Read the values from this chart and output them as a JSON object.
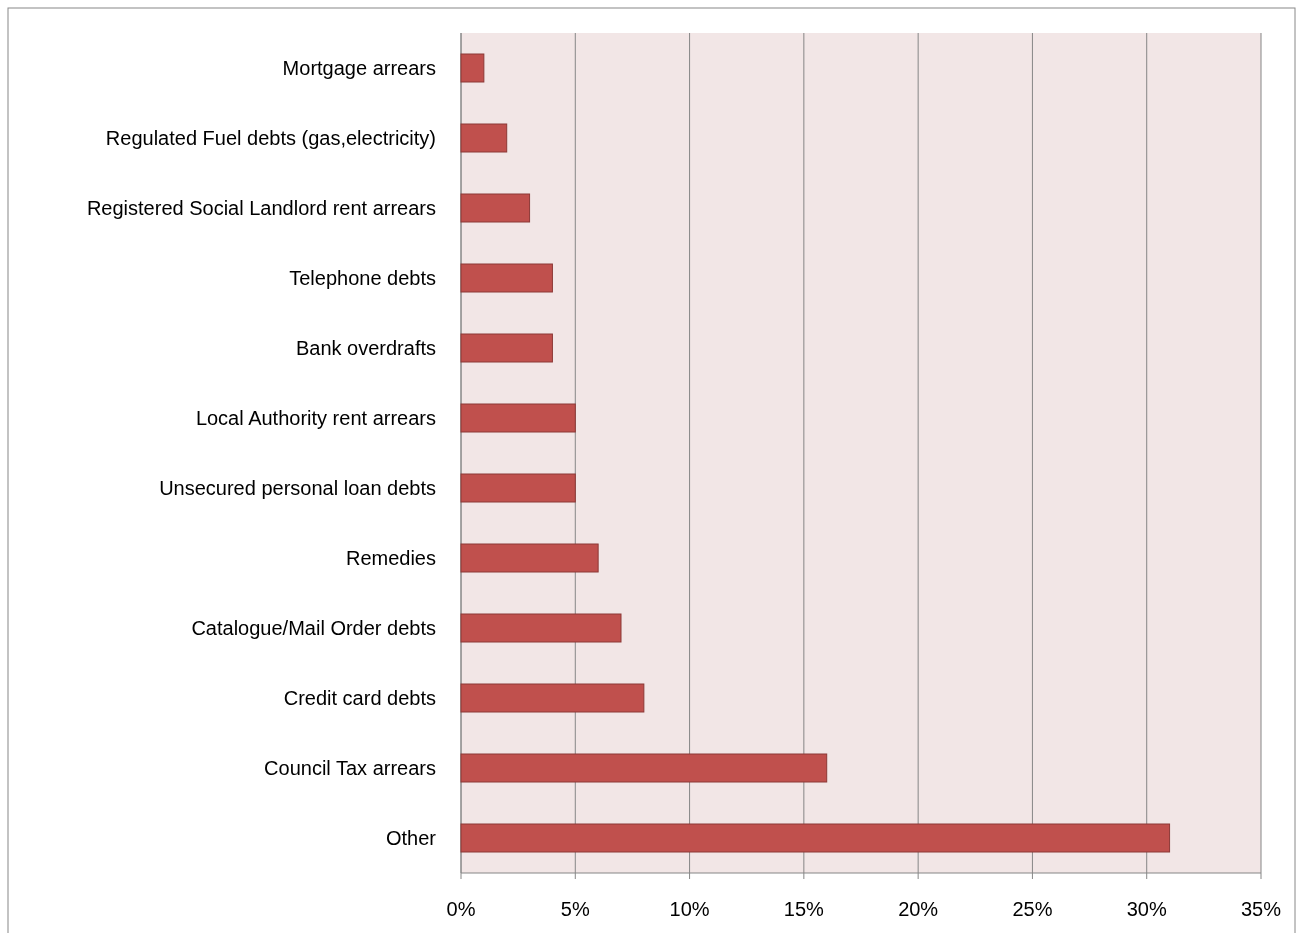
{
  "chart_data": {
    "type": "bar",
    "orientation": "horizontal",
    "categories": [
      "Mortgage arrears",
      "Regulated Fuel debts (gas,electricity)",
      "Registered Social Landlord rent arrears",
      "Telephone debts",
      "Bank overdrafts",
      "Local Authority rent arrears",
      "Unsecured personal loan debts",
      "Remedies",
      "Catalogue/Mail Order debts",
      "Credit card debts",
      "Council Tax arrears",
      "Other"
    ],
    "values": [
      1,
      2,
      3,
      4,
      4,
      5,
      5,
      6,
      7,
      8,
      16,
      31
    ],
    "color": "#c0504d",
    "xlim": [
      0,
      35
    ],
    "xticks": [
      {
        "value": 0,
        "label": "0%"
      },
      {
        "value": 5,
        "label": "5%"
      },
      {
        "value": 10,
        "label": "10%"
      },
      {
        "value": 15,
        "label": "15%"
      },
      {
        "value": 20,
        "label": "20%"
      },
      {
        "value": 25,
        "label": "25%"
      },
      {
        "value": 30,
        "label": "30%"
      },
      {
        "value": 35,
        "label": "35%"
      }
    ],
    "grid": "x"
  }
}
